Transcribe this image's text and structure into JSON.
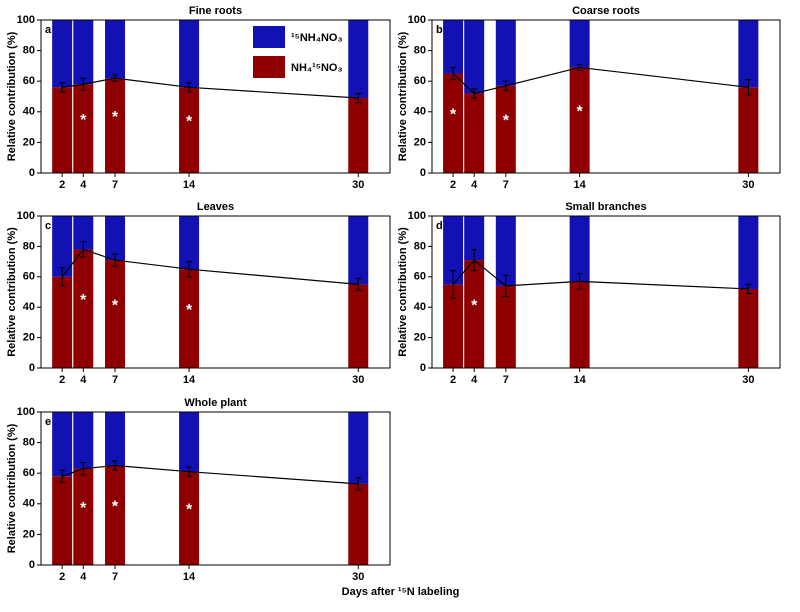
{
  "chart_data": [
    {
      "type": "bar",
      "stacked": true,
      "panel": "a",
      "title": "Fine roots",
      "ylabel": "Relative contribution (%)",
      "legend": "top-center",
      "x": [
        2,
        4,
        7,
        14,
        30
      ],
      "xlim": [
        0,
        33
      ],
      "ylim": [
        0,
        100
      ],
      "xticks": [
        2,
        4,
        7,
        14,
        30
      ],
      "yticks": [
        0,
        20,
        40,
        60,
        80,
        100
      ],
      "line": true,
      "series": [
        {
          "name": "NH₄¹⁵NO₃",
          "color": "#8e0000",
          "values": [
            56,
            58,
            62,
            56,
            49
          ],
          "errors": [
            3,
            4,
            2,
            3,
            3
          ]
        },
        {
          "name": "¹⁵NH₄NO₃",
          "color": "#1212b4",
          "values": [
            44,
            42,
            38,
            44,
            51
          ]
        }
      ],
      "annotations": [
        {
          "text": "*",
          "x": 4
        },
        {
          "text": "*",
          "x": 7
        },
        {
          "text": "*",
          "x": 14
        }
      ]
    },
    {
      "type": "bar",
      "stacked": true,
      "panel": "b",
      "title": "Coarse roots",
      "ylabel": "Relative contribution (%)",
      "x": [
        2,
        4,
        7,
        14,
        30
      ],
      "xlim": [
        0,
        33
      ],
      "ylim": [
        0,
        100
      ],
      "xticks": [
        2,
        4,
        7,
        14,
        30
      ],
      "yticks": [
        0,
        20,
        40,
        60,
        80,
        100
      ],
      "line": true,
      "series": [
        {
          "color": "#8e0000",
          "values": [
            65,
            52,
            57,
            69,
            56
          ],
          "errors": [
            4,
            3,
            3,
            2,
            5
          ]
        },
        {
          "color": "#1212b4",
          "values": [
            35,
            48,
            43,
            31,
            44
          ]
        }
      ],
      "annotations": [
        {
          "text": "*",
          "x": 2
        },
        {
          "text": "*",
          "x": 7
        },
        {
          "text": "*",
          "x": 14
        }
      ]
    },
    {
      "type": "bar",
      "stacked": true,
      "panel": "c",
      "title": "Leaves",
      "ylabel": "Relative contribution (%)",
      "x": [
        2,
        4,
        7,
        14,
        30
      ],
      "xlim": [
        0,
        33
      ],
      "ylim": [
        0,
        100
      ],
      "xticks": [
        2,
        4,
        7,
        14,
        30
      ],
      "yticks": [
        0,
        20,
        40,
        60,
        80,
        100
      ],
      "line": true,
      "series": [
        {
          "color": "#8e0000",
          "values": [
            60,
            78,
            71,
            65,
            55
          ],
          "errors": [
            6,
            5,
            4,
            5,
            4
          ]
        },
        {
          "color": "#1212b4",
          "values": [
            40,
            22,
            29,
            35,
            45
          ]
        }
      ],
      "annotations": [
        {
          "text": "*",
          "x": 4
        },
        {
          "text": "*",
          "x": 7
        },
        {
          "text": "*",
          "x": 14
        }
      ]
    },
    {
      "type": "bar",
      "stacked": true,
      "panel": "d",
      "title": "Small branches",
      "ylabel": "Relative contribution (%)",
      "x": [
        2,
        4,
        7,
        14,
        30
      ],
      "xlim": [
        0,
        33
      ],
      "ylim": [
        0,
        100
      ],
      "xticks": [
        2,
        4,
        7,
        14,
        30
      ],
      "yticks": [
        0,
        20,
        40,
        60,
        80,
        100
      ],
      "line": true,
      "series": [
        {
          "color": "#8e0000",
          "values": [
            55,
            71,
            54,
            57,
            52
          ],
          "errors": [
            9,
            7,
            7,
            5,
            3
          ]
        },
        {
          "color": "#1212b4",
          "values": [
            45,
            29,
            46,
            43,
            48
          ]
        }
      ],
      "annotations": [
        {
          "text": "*",
          "x": 4
        }
      ]
    },
    {
      "type": "bar",
      "stacked": true,
      "panel": "e",
      "title": "Whole plant",
      "ylabel": "Relative contribution (%)",
      "xlabel": "Days after ¹⁵N labeling",
      "x": [
        2,
        4,
        7,
        14,
        30
      ],
      "xlim": [
        0,
        33
      ],
      "ylim": [
        0,
        100
      ],
      "xticks": [
        2,
        4,
        7,
        14,
        30
      ],
      "yticks": [
        0,
        20,
        40,
        60,
        80,
        100
      ],
      "line": true,
      "series": [
        {
          "color": "#8e0000",
          "values": [
            58,
            63,
            65,
            61,
            53
          ],
          "errors": [
            4,
            4,
            3,
            3,
            4
          ]
        },
        {
          "color": "#1212b4",
          "values": [
            42,
            37,
            35,
            39,
            47
          ]
        }
      ],
      "annotations": [
        {
          "text": "*",
          "x": 4
        },
        {
          "text": "*",
          "x": 7
        },
        {
          "text": "*",
          "x": 14
        }
      ]
    }
  ]
}
